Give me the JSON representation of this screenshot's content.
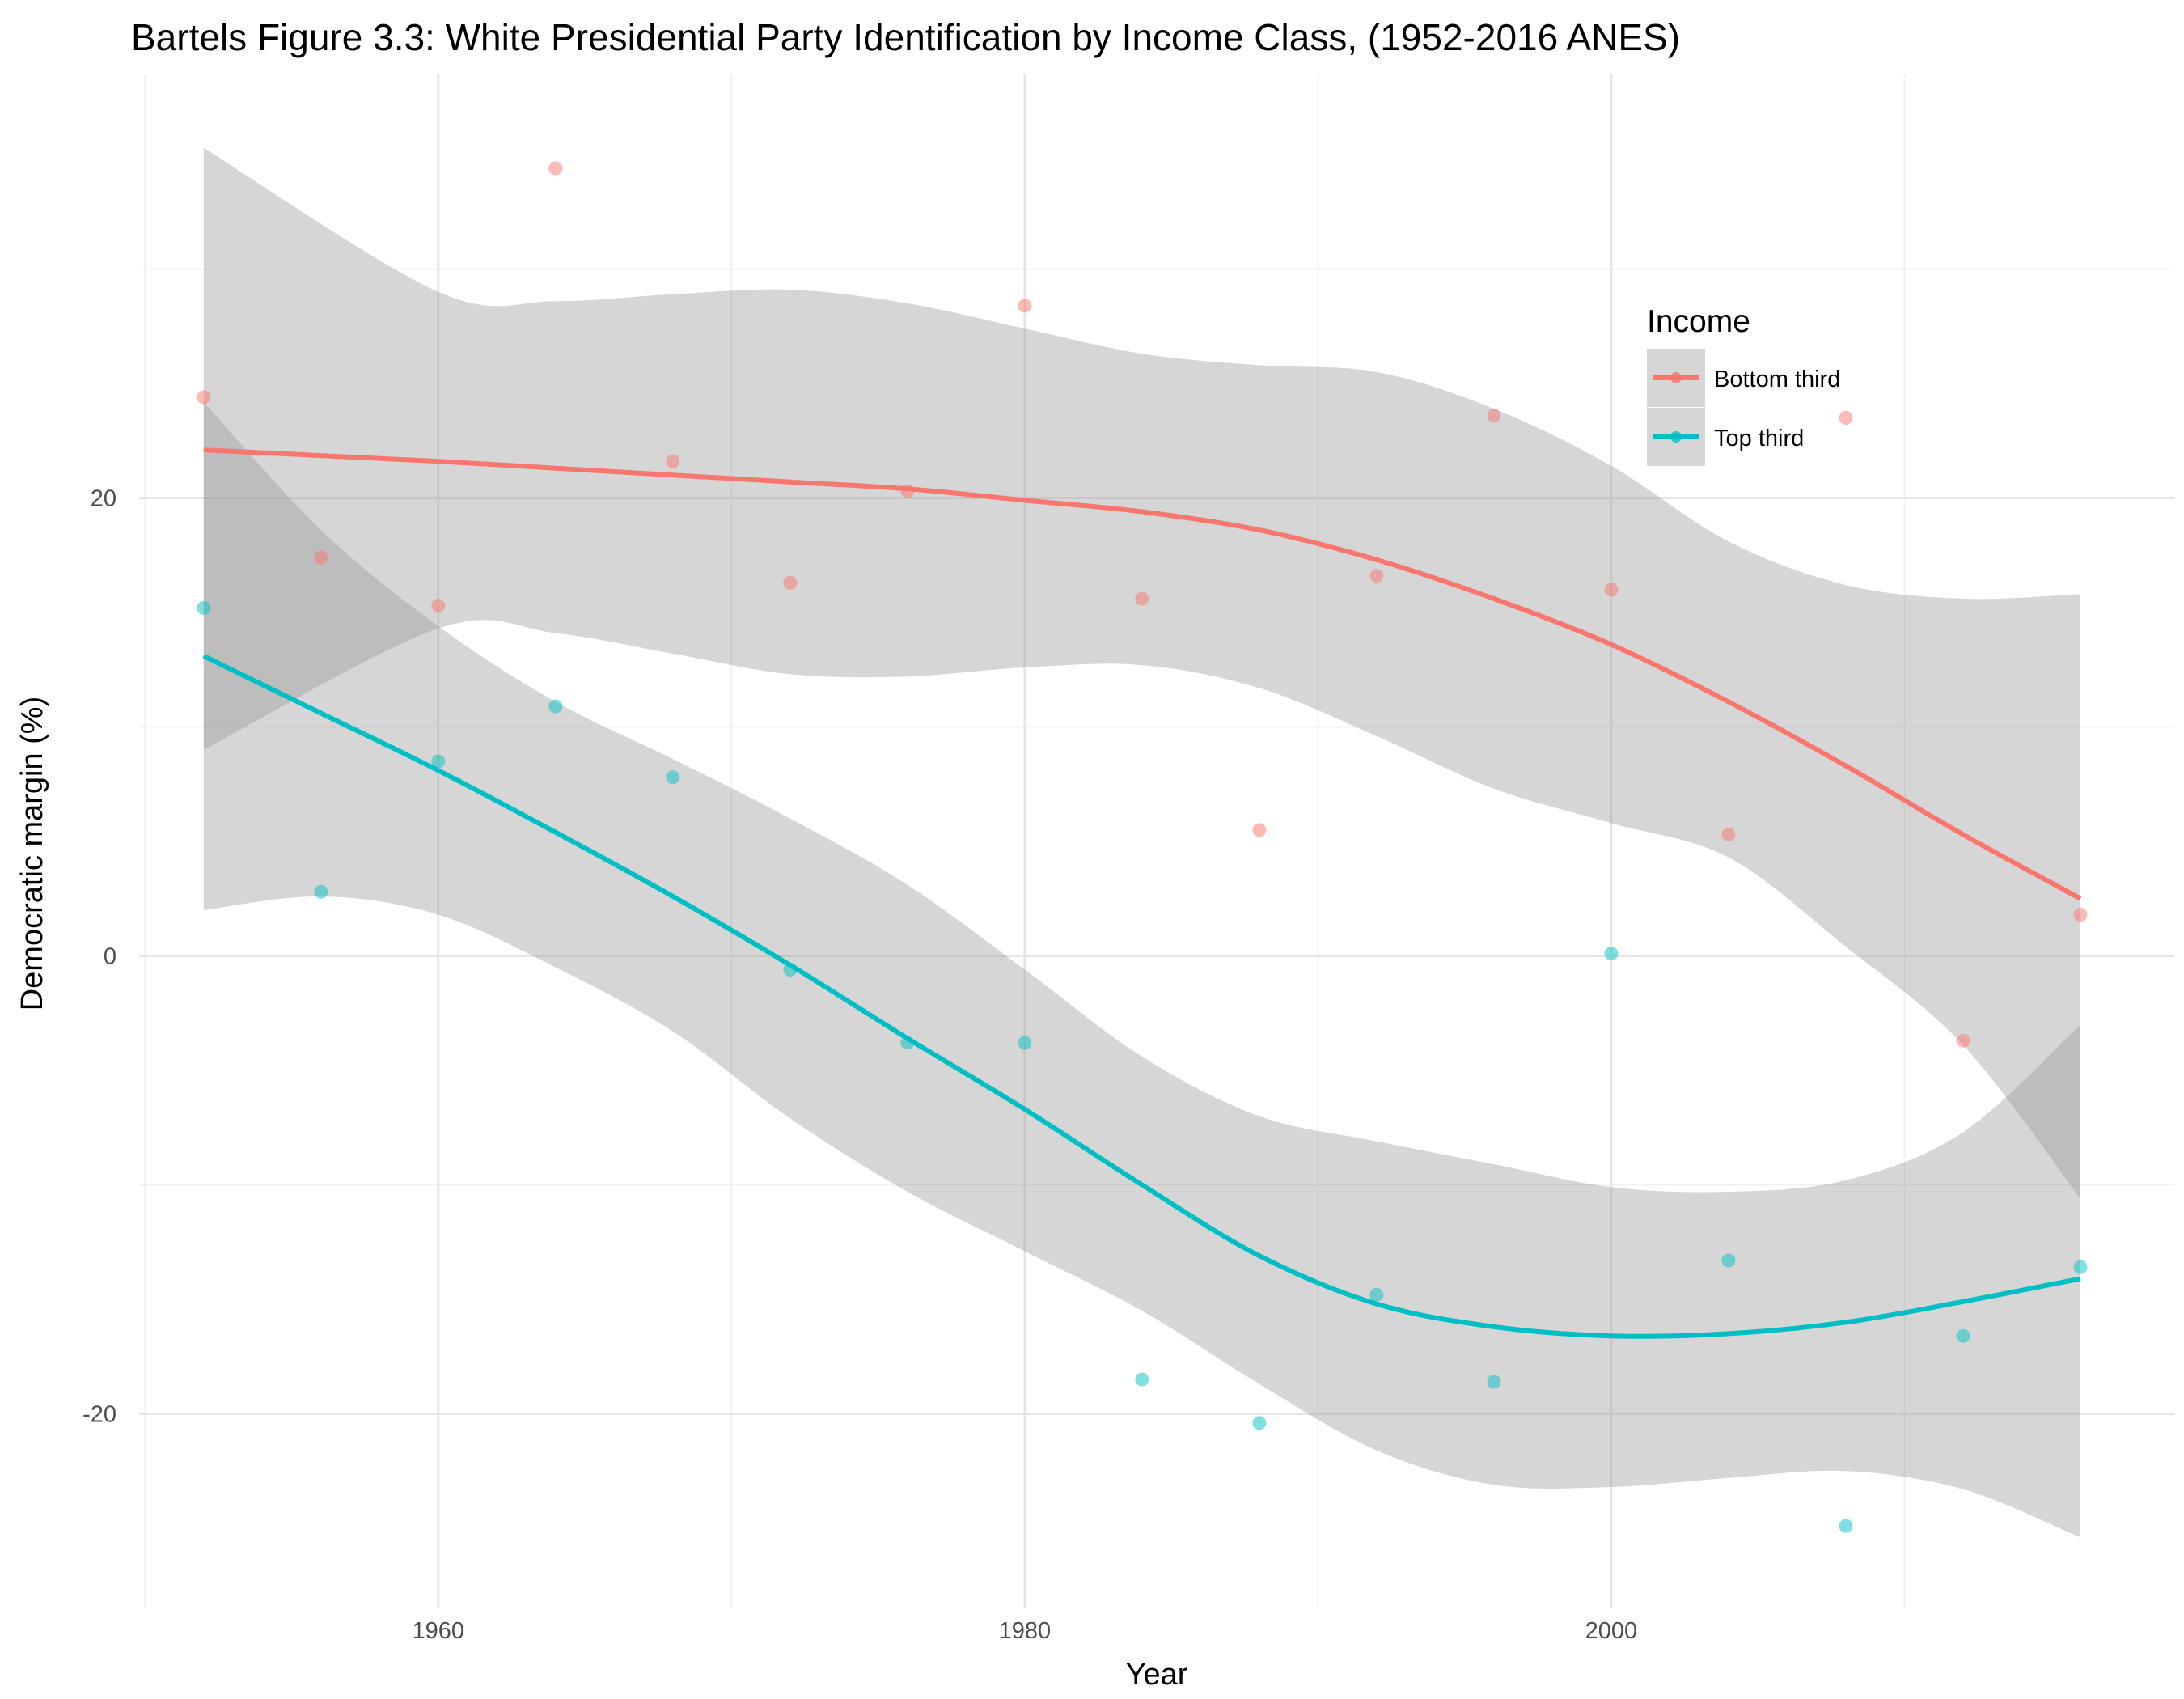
{
  "chart_data": {
    "type": "scatter",
    "title": "Bartels Figure 3.3: White Presidential Party Identification by Income Class, (1952-2016 ANES)",
    "xlabel": "Year",
    "ylabel": "Democratic margin (%)",
    "xlim": [
      1949.8,
      2019.2
    ],
    "ylim": [
      -28.5,
      38.5
    ],
    "x_ticks": [
      1960,
      1980,
      2000
    ],
    "x_minor_ticks": [
      1950,
      1970,
      1990,
      2010
    ],
    "y_ticks": [
      -20,
      0,
      20
    ],
    "y_minor_ticks": [
      -10,
      10,
      30
    ],
    "grid": true,
    "legend": {
      "title": "Income",
      "position": "top-right, inside plot"
    },
    "ribbon_color": "#999999",
    "series": [
      {
        "name": "Bottom third",
        "color": "#F8766D",
        "points": [
          {
            "x": 1952,
            "y": 24.4
          },
          {
            "x": 1956,
            "y": 17.4
          },
          {
            "x": 1960,
            "y": 15.3
          },
          {
            "x": 1964,
            "y": 34.4
          },
          {
            "x": 1968,
            "y": 21.6
          },
          {
            "x": 1972,
            "y": 16.3
          },
          {
            "x": 1976,
            "y": 20.3
          },
          {
            "x": 1980,
            "y": 28.4
          },
          {
            "x": 1984,
            "y": 15.6
          },
          {
            "x": 1988,
            "y": 5.5
          },
          {
            "x": 1992,
            "y": 16.6
          },
          {
            "x": 1996,
            "y": 23.6
          },
          {
            "x": 2000,
            "y": 16.0
          },
          {
            "x": 2004,
            "y": 5.3
          },
          {
            "x": 2008,
            "y": 23.5
          },
          {
            "x": 2012,
            "y": -3.7
          },
          {
            "x": 2016,
            "y": 1.8
          }
        ],
        "smooth": [
          {
            "x": 1952,
            "y": 22.1,
            "lo": 9.0,
            "hi": 35.3
          },
          {
            "x": 1960,
            "y": 21.6,
            "lo": 14.3,
            "hi": 29.0
          },
          {
            "x": 1964,
            "y": 21.3,
            "lo": 14.1,
            "hi": 28.6
          },
          {
            "x": 1968,
            "y": 21.0,
            "lo": 13.2,
            "hi": 28.9
          },
          {
            "x": 1972,
            "y": 20.7,
            "lo": 12.3,
            "hi": 29.1
          },
          {
            "x": 1976,
            "y": 20.4,
            "lo": 12.2,
            "hi": 28.5
          },
          {
            "x": 1980,
            "y": 19.9,
            "lo": 12.6,
            "hi": 27.4
          },
          {
            "x": 1984,
            "y": 19.4,
            "lo": 12.7,
            "hi": 26.3
          },
          {
            "x": 1988,
            "y": 18.6,
            "lo": 11.7,
            "hi": 25.8
          },
          {
            "x": 1992,
            "y": 17.3,
            "lo": 9.6,
            "hi": 25.5
          },
          {
            "x": 1996,
            "y": 15.6,
            "lo": 7.3,
            "hi": 23.9
          },
          {
            "x": 2000,
            "y": 13.6,
            "lo": 5.8,
            "hi": 21.4
          },
          {
            "x": 2004,
            "y": 11.1,
            "lo": 4.3,
            "hi": 18.1
          },
          {
            "x": 2008,
            "y": 8.3,
            "lo": 0.4,
            "hi": 16.2
          },
          {
            "x": 2012,
            "y": 5.3,
            "lo": -3.9,
            "hi": 15.6
          },
          {
            "x": 2016,
            "y": 2.5,
            "lo": -10.6,
            "hi": 15.8
          }
        ]
      },
      {
        "name": "Top third",
        "color": "#00BFC4",
        "points": [
          {
            "x": 1952,
            "y": 15.2
          },
          {
            "x": 1956,
            "y": 2.8
          },
          {
            "x": 1960,
            "y": 8.5
          },
          {
            "x": 1964,
            "y": 10.9
          },
          {
            "x": 1968,
            "y": 7.8
          },
          {
            "x": 1972,
            "y": -0.6
          },
          {
            "x": 1976,
            "y": -3.8
          },
          {
            "x": 1980,
            "y": -3.8
          },
          {
            "x": 1984,
            "y": -18.5
          },
          {
            "x": 1988,
            "y": -20.4
          },
          {
            "x": 1992,
            "y": -14.8
          },
          {
            "x": 1996,
            "y": -18.6
          },
          {
            "x": 2000,
            "y": 0.1
          },
          {
            "x": 2004,
            "y": -13.3
          },
          {
            "x": 2008,
            "y": -24.9
          },
          {
            "x": 2012,
            "y": -16.6
          },
          {
            "x": 2016,
            "y": -13.6
          }
        ],
        "smooth": [
          {
            "x": 1952,
            "y": 13.1,
            "lo": 2.0,
            "hi": 24.2
          },
          {
            "x": 1956,
            "y": 10.6,
            "lo": 2.6,
            "hi": 18.6
          },
          {
            "x": 1960,
            "y": 8.1,
            "lo": 1.8,
            "hi": 14.4
          },
          {
            "x": 1964,
            "y": 5.4,
            "lo": -0.5,
            "hi": 11.1
          },
          {
            "x": 1968,
            "y": 2.6,
            "lo": -3.3,
            "hi": 8.6
          },
          {
            "x": 1972,
            "y": -0.4,
            "lo": -7.1,
            "hi": 6.0
          },
          {
            "x": 1976,
            "y": -3.6,
            "lo": -10.3,
            "hi": 3.1
          },
          {
            "x": 1980,
            "y": -6.7,
            "lo": -12.9,
            "hi": -0.6
          },
          {
            "x": 1984,
            "y": -10.0,
            "lo": -15.5,
            "hi": -4.4
          },
          {
            "x": 1988,
            "y": -13.1,
            "lo": -18.7,
            "hi": -7.0
          },
          {
            "x": 1992,
            "y": -15.2,
            "lo": -21.6,
            "hi": -8.1
          },
          {
            "x": 1996,
            "y": -16.2,
            "lo": -23.1,
            "hi": -9.1
          },
          {
            "x": 2000,
            "y": -16.6,
            "lo": -23.2,
            "hi": -10.1
          },
          {
            "x": 2004,
            "y": -16.5,
            "lo": -22.8,
            "hi": -10.3
          },
          {
            "x": 2008,
            "y": -16.0,
            "lo": -22.5,
            "hi": -9.8
          },
          {
            "x": 2012,
            "y": -15.1,
            "lo": -23.3,
            "hi": -7.7
          },
          {
            "x": 2016,
            "y": -14.1,
            "lo": -25.4,
            "hi": -3.0
          }
        ]
      }
    ]
  }
}
